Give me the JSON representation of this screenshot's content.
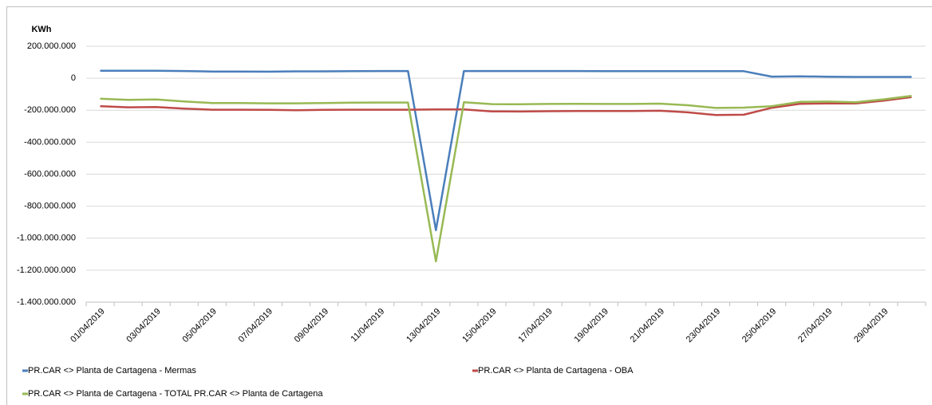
{
  "chart_data": {
    "type": "line",
    "y_label": "KWh",
    "categories": [
      "01/04/2019",
      null,
      "03/04/2019",
      null,
      "05/04/2019",
      null,
      "07/04/2019",
      null,
      "09/04/2019",
      null,
      "11/04/2019",
      null,
      "13/04/2019",
      null,
      "15/04/2019",
      null,
      "17/04/2019",
      null,
      "19/04/2019",
      null,
      "21/04/2019",
      null,
      "23/04/2019",
      null,
      "25/04/2019",
      null,
      "27/04/2019",
      null,
      "29/04/2019",
      null
    ],
    "series": [
      {
        "name": "PR.CAR <> Planta de Cartagena - Mermas",
        "color": "#4a7ebb",
        "values": [
          47000000,
          47000000,
          47000000,
          45000000,
          42000000,
          42000000,
          41000000,
          43000000,
          43000000,
          44000000,
          45000000,
          45000000,
          -950000000,
          45000000,
          45000000,
          45000000,
          45000000,
          45000000,
          44000000,
          44000000,
          44000000,
          44000000,
          44000000,
          44000000,
          10000000,
          12000000,
          9000000,
          8000000,
          8000000,
          8000000
        ]
      },
      {
        "name": "PR.CAR <> Planta de Cartagena - OBA",
        "color": "#be4b48",
        "values": [
          -175000000,
          -182000000,
          -180000000,
          -190000000,
          -197000000,
          -197000000,
          -198000000,
          -200000000,
          -198000000,
          -197000000,
          -197000000,
          -197000000,
          -195000000,
          -195000000,
          -207000000,
          -208000000,
          -206000000,
          -205000000,
          -205000000,
          -205000000,
          -203000000,
          -213000000,
          -230000000,
          -228000000,
          -185000000,
          -160000000,
          -158000000,
          -158000000,
          -140000000,
          -118000000
        ]
      },
      {
        "name": "PR.CAR <> Planta de Cartagena - TOTAL PR.CAR <> Planta de Cartagena",
        "color": "#98b954",
        "values": [
          -128000000,
          -135000000,
          -133000000,
          -145000000,
          -155000000,
          -155000000,
          -157000000,
          -157000000,
          -155000000,
          -153000000,
          -152000000,
          -152000000,
          -1145000000,
          -150000000,
          -162000000,
          -163000000,
          -161000000,
          -160000000,
          -161000000,
          -161000000,
          -159000000,
          -169000000,
          -186000000,
          -184000000,
          -175000000,
          -148000000,
          -146000000,
          -150000000,
          -132000000,
          -110000000
        ]
      }
    ],
    "ylim": [
      -1400000000,
      200000000
    ],
    "yticks": [
      {
        "value": -1400000000,
        "label": "-1.400.000.000"
      },
      {
        "value": -1200000000,
        "label": "-1.200.000.000"
      },
      {
        "value": -1000000000,
        "label": "-1.000.000.000"
      },
      {
        "value": -800000000,
        "label": "-800.000.000"
      },
      {
        "value": -600000000,
        "label": "-600.000.000"
      },
      {
        "value": -400000000,
        "label": "-400.000.000"
      },
      {
        "value": -200000000,
        "label": "-200.000.000"
      },
      0,
      {
        "value": 200000000,
        "label": "200.000.000"
      }
    ],
    "grid": true,
    "legend": "bottom"
  }
}
